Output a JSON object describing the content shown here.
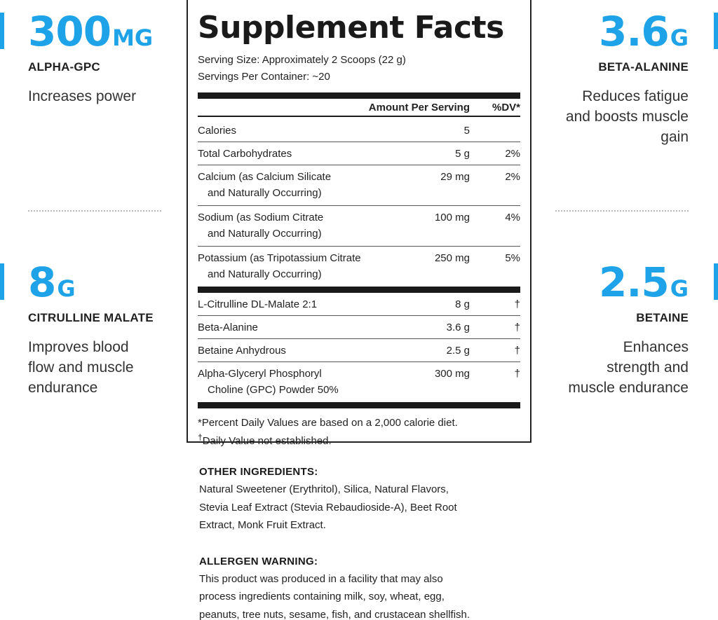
{
  "colors": {
    "accent": "#1fa3e8",
    "text": "#222222",
    "rule": "#1a1a1a"
  },
  "callouts": {
    "alpha_gpc": {
      "value": "300",
      "unit": "MG",
      "name": "ALPHA-GPC",
      "desc": [
        "Increases power"
      ]
    },
    "beta_alanine": {
      "value": "3.6",
      "unit": "G",
      "name": "BETA-ALANINE",
      "desc": [
        "Reduces fatigue",
        "and boosts muscle",
        "gain"
      ]
    },
    "citrulline": {
      "value": "8",
      "unit": "G",
      "name": "CITRULLINE MALATE",
      "desc": [
        "Improves blood",
        "flow and muscle",
        "endurance"
      ]
    },
    "betaine": {
      "value": "2.5",
      "unit": "G",
      "name": "BETAINE",
      "desc": [
        "Enhances",
        "strength and",
        "muscle endurance"
      ]
    }
  },
  "facts": {
    "title": "Supplement Facts",
    "serving_size": "Serving Size: Approximately 2 Scoops (22 g)",
    "servings_per_container": "Servings Per Container: ~20",
    "header": {
      "amount": "Amount Per Serving",
      "dv": "%DV*"
    },
    "nutrients": [
      {
        "name": "Calories",
        "name2": "",
        "amount": "5",
        "dv": ""
      },
      {
        "name": "Total Carbohydrates",
        "name2": "",
        "amount": "5 g",
        "dv": "2%"
      },
      {
        "name": "Calcium (as Calcium Silicate",
        "name2": "and Naturally Occurring)",
        "amount": "29 mg",
        "dv": "2%"
      },
      {
        "name": "Sodium (as Sodium Citrate",
        "name2": "and Naturally Occurring)",
        "amount": "100 mg",
        "dv": "4%"
      },
      {
        "name": "Potassium (as Tripotassium Citrate",
        "name2": "and Naturally Occurring)",
        "amount": "250 mg",
        "dv": "5%"
      }
    ],
    "actives": [
      {
        "name": "L-Citrulline DL-Malate 2:1",
        "name2": "",
        "amount": "8 g",
        "dv": "†"
      },
      {
        "name": "Beta-Alanine",
        "name2": "",
        "amount": "3.6 g",
        "dv": "†"
      },
      {
        "name": "Betaine Anhydrous",
        "name2": "",
        "amount": "2.5 g",
        "dv": "†"
      },
      {
        "name": "Alpha-Glyceryl Phosphoryl",
        "name2": "Choline (GPC) Powder 50%",
        "amount": "300 mg",
        "dv": "†"
      }
    ],
    "footnote_dv": "*Percent Daily Values are based on a 2,000 calorie diet.",
    "footnote_dagger_symbol": "†",
    "footnote_dagger": "Daily Value not established."
  },
  "other_ingredients": {
    "title": "OTHER INGREDIENTS:",
    "lines": [
      "Natural Sweetener (Erythritol), Silica, Natural Flavors,",
      "Stevia Leaf Extract (Stevia Rebaudioside-A), Beet Root",
      "Extract, Monk Fruit Extract."
    ]
  },
  "allergen": {
    "title": "ALLERGEN WARNING:",
    "lines": [
      "This product was produced in a facility that may also",
      "process ingredients containing milk, soy, wheat, egg,",
      "peanuts, tree nuts, sesame, fish, and crustacean shellfish."
    ]
  }
}
